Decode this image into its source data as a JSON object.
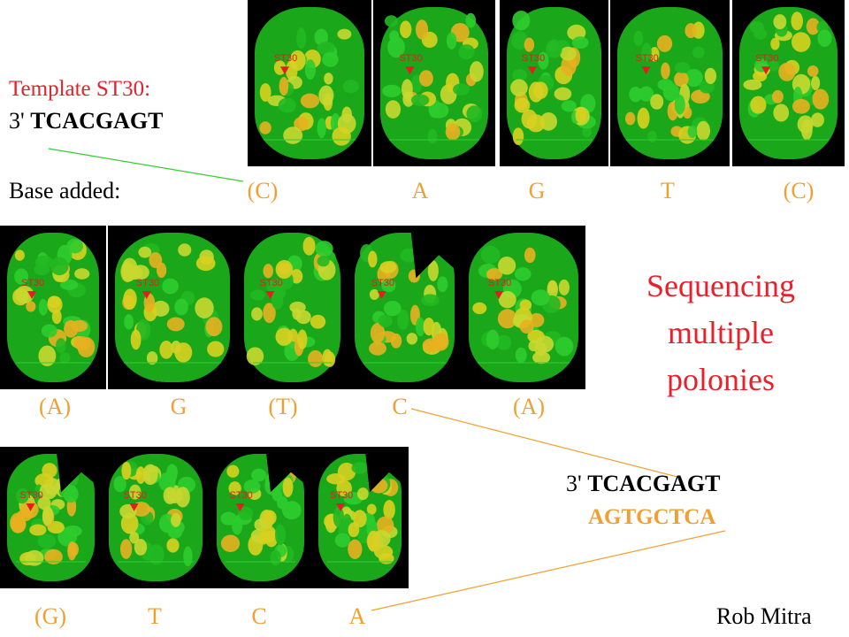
{
  "template": {
    "label": "Template ST30:",
    "prefix": "3'",
    "sequence": "TCACGAGT"
  },
  "rows": [
    {
      "label": "Base added:",
      "bases": [
        "(C)",
        "A",
        "G",
        "T",
        "(C)"
      ]
    },
    {
      "bases": [
        "(A)",
        "G",
        "(T)",
        "C",
        "(A)"
      ]
    },
    {
      "bases": [
        "(G)",
        "T",
        "C",
        "A"
      ]
    }
  ],
  "spot_label": "ST30",
  "title_lines": [
    "Sequencing",
    "multiple",
    "polonies"
  ],
  "result": {
    "prefix": "3'",
    "template": "TCACGAGT",
    "complement": "AGTGCTCA"
  },
  "credit": "Rob Mitra"
}
